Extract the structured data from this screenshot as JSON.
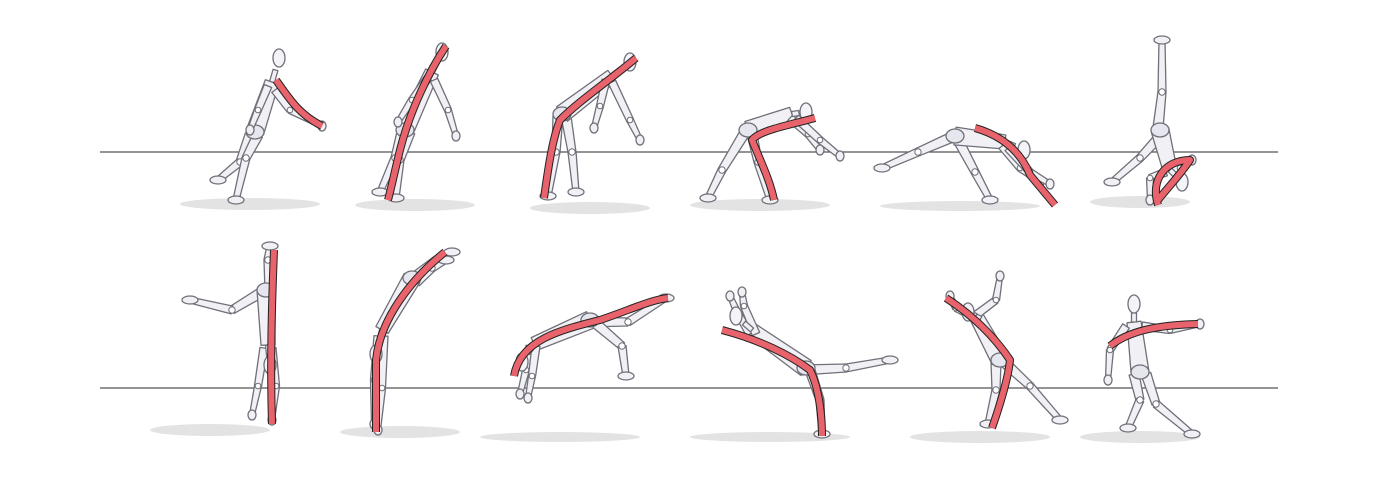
{
  "figure": {
    "rows": 2,
    "frames_per_row": 6,
    "colors": {
      "background": "#ffffff",
      "ground_line": "#555555",
      "mannequin_fill": "#f1f1f5",
      "mannequin_outline": "#6f7079",
      "ribbon": "#e8636b",
      "ribbon_outline": "#222222",
      "shadow": "#d9d9d9"
    },
    "frames": [
      {
        "id": 1,
        "pose": "standing-arm-extended"
      },
      {
        "id": 2,
        "pose": "leaning-forward"
      },
      {
        "id": 3,
        "pose": "bending-over"
      },
      {
        "id": 4,
        "pose": "crouching"
      },
      {
        "id": 5,
        "pose": "reaching-down"
      },
      {
        "id": 6,
        "pose": "hand-on-ground-legs-up"
      },
      {
        "id": 7,
        "pose": "handstand"
      },
      {
        "id": 8,
        "pose": "arched-handstand"
      },
      {
        "id": 9,
        "pose": "walkover"
      },
      {
        "id": 10,
        "pose": "landing"
      },
      {
        "id": 11,
        "pose": "rising"
      },
      {
        "id": 12,
        "pose": "standing-arm-extended"
      }
    ]
  }
}
